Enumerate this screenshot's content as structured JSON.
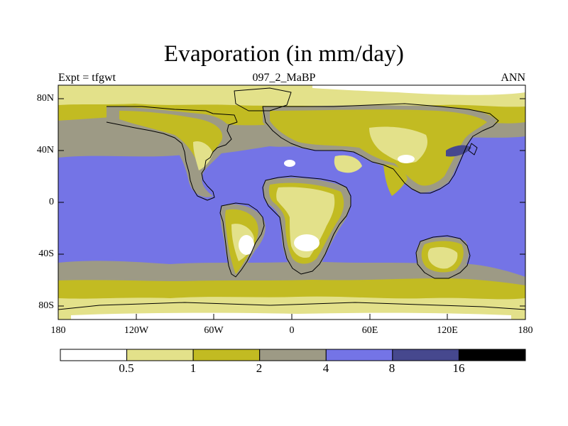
{
  "title": "Evaporation (in mm/day)",
  "left_label": "Expt = tfgwt",
  "center_label": "097_2_MaBP",
  "right_label": "ANN",
  "y_ticks": [
    "80N",
    "40N",
    "0",
    "40S",
    "80S"
  ],
  "x_ticks": [
    "180",
    "120W",
    "60W",
    "0",
    "60E",
    "120E",
    "180"
  ],
  "colorbar": {
    "levels": [
      "0.5",
      "1",
      "2",
      "4",
      "8",
      "16"
    ],
    "colors": [
      "#ffffff",
      "#e3e18a",
      "#c2bb22",
      "#9d9a85",
      "#7474e6",
      "#46488e",
      "#000000"
    ]
  },
  "chart_data": {
    "type": "heatmap",
    "title": "Evaporation (in mm/day)",
    "variable": "Evaporation",
    "units": "mm/day",
    "experiment": "tfgwt",
    "case": "097_2_MaBP",
    "season": "ANN",
    "xlim": [
      -180,
      180
    ],
    "ylim": [
      -90,
      90
    ],
    "contour_levels": [
      0.5,
      1,
      2,
      4,
      8,
      16
    ],
    "regions": [
      {
        "name": "tropical ocean",
        "class": "4-8 mm/day"
      },
      {
        "name": "mid-latitude ocean",
        "class": "2-4 mm/day"
      },
      {
        "name": "subtropical ocean small patch",
        "class": "8-16 mm/day"
      },
      {
        "name": "high-latitude ocean",
        "class": "1-2 mm/day"
      },
      {
        "name": "polar",
        "class": "0.5-1 mm/day"
      },
      {
        "name": "desert interiors",
        "class": "<0.5 mm/day"
      }
    ]
  }
}
